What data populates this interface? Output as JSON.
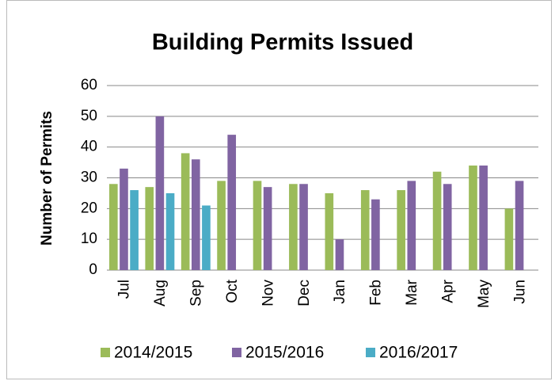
{
  "chart_data": {
    "type": "bar",
    "title": "Building Permits Issued",
    "y_label": "Number of Permits",
    "categories": [
      "Jul",
      "Aug",
      "Sep",
      "Oct",
      "Nov",
      "Dec",
      "Jan",
      "Feb",
      "Mar",
      "Apr",
      "May",
      "Jun"
    ],
    "series": [
      {
        "name": "2014/2015",
        "color": "#9bbb59",
        "values": [
          28,
          27,
          38,
          29,
          29,
          28,
          25,
          26,
          26,
          32,
          34,
          20
        ]
      },
      {
        "name": "2015/2016",
        "color": "#8064a2",
        "values": [
          33,
          50,
          36,
          44,
          27,
          28,
          10,
          23,
          29,
          28,
          34,
          29
        ]
      },
      {
        "name": "2016/2017",
        "color": "#4bacc6",
        "values": [
          26,
          25,
          21,
          null,
          null,
          null,
          null,
          null,
          null,
          null,
          null,
          null
        ]
      }
    ],
    "ylim": [
      0,
      60
    ],
    "yticks": [
      0,
      10,
      20,
      30,
      40,
      50,
      60
    ],
    "grid": true,
    "legend": "bottom"
  }
}
